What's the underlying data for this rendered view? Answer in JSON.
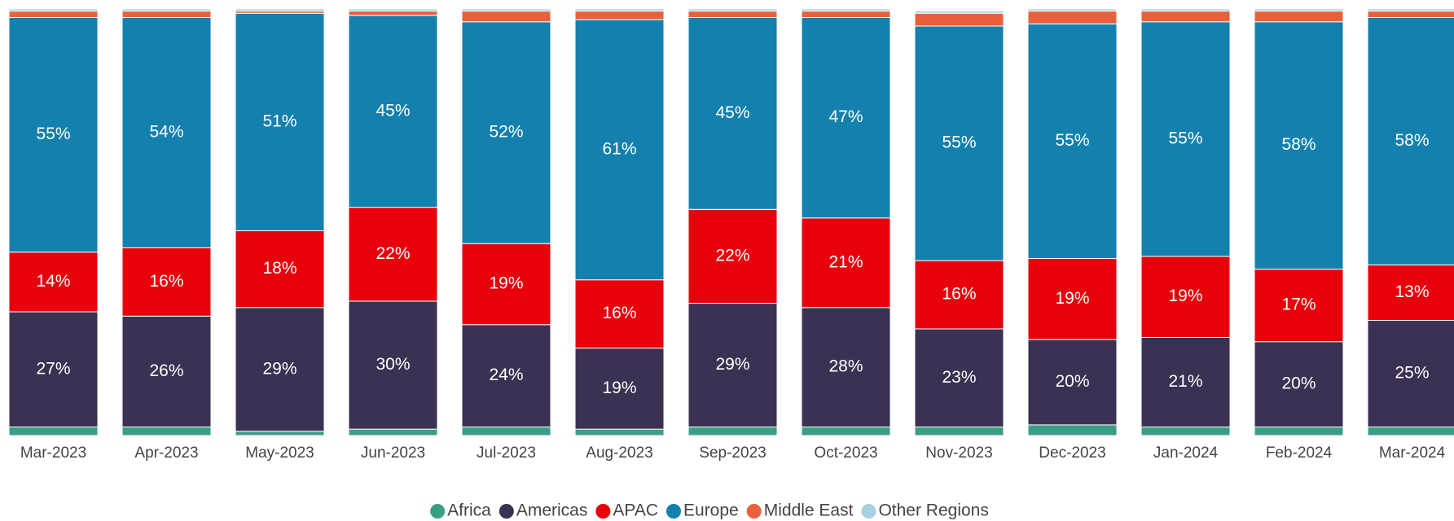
{
  "chart_data": {
    "type": "stacked_bar",
    "categories": [
      "Mar-2023",
      "Apr-2023",
      "May-2023",
      "Jun-2023",
      "Jul-2023",
      "Aug-2023",
      "Sep-2023",
      "Oct-2023",
      "Nov-2023",
      "Dec-2023",
      "Jan-2024",
      "Feb-2024",
      "Mar-2024"
    ],
    "ylim": [
      0,
      100
    ],
    "legend": "bottom",
    "series": [
      {
        "name": "Africa",
        "color": "#3a9e85",
        "values": [
          2,
          2,
          1,
          1.5,
          2,
          1.5,
          2,
          2,
          2,
          2.5,
          2,
          2,
          2
        ]
      },
      {
        "name": "Americas",
        "color": "#3b3152",
        "values": [
          27,
          26,
          29,
          30,
          24,
          19,
          29,
          28,
          23,
          20,
          21,
          20,
          25
        ],
        "value_labels": [
          "27%",
          "26%",
          "29%",
          "30%",
          "24%",
          "19%",
          "29%",
          "28%",
          "23%",
          "20%",
          "21%",
          "20%",
          "25%"
        ]
      },
      {
        "name": "APAC",
        "color": "#e8000b",
        "values": [
          14,
          16,
          18,
          22,
          19,
          16,
          22,
          21,
          16,
          19,
          19,
          17,
          13
        ],
        "value_labels": [
          "14%",
          "16%",
          "18%",
          "22%",
          "19%",
          "16%",
          "22%",
          "21%",
          "16%",
          "19%",
          "19%",
          "17%",
          "13%"
        ]
      },
      {
        "name": "Europe",
        "color": "#1480ad",
        "values": [
          55,
          54,
          51,
          45,
          52,
          61,
          45,
          47,
          55,
          55,
          55,
          58,
          58
        ],
        "value_labels": [
          "55%",
          "54%",
          "51%",
          "45%",
          "52%",
          "61%",
          "45%",
          "47%",
          "55%",
          "55%",
          "55%",
          "58%",
          "58%"
        ]
      },
      {
        "name": "Middle East",
        "color": "#e8603c",
        "values": [
          1.5,
          1.5,
          0.5,
          1,
          2.5,
          2,
          1.5,
          1.5,
          3,
          3,
          2.5,
          2.5,
          1.5
        ]
      },
      {
        "name": "Other Regions",
        "color": "#a6cfe0",
        "values": [
          0.5,
          0.5,
          0.5,
          0.5,
          0.5,
          0.5,
          0.5,
          0.5,
          0.5,
          0.5,
          0.5,
          0.5,
          0.5
        ]
      }
    ]
  }
}
